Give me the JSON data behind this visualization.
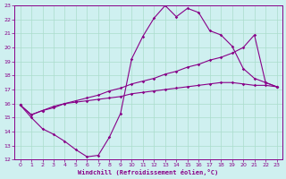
{
  "xlabel": "Windchill (Refroidissement éolien,°C)",
  "background_color": "#cff0f0",
  "line_color": "#880088",
  "grid_color": "#aaddcc",
  "xlim": [
    -0.5,
    23.5
  ],
  "ylim": [
    12,
    23
  ],
  "yticks": [
    12,
    13,
    14,
    15,
    16,
    17,
    18,
    19,
    20,
    21,
    22,
    23
  ],
  "xticks": [
    0,
    1,
    2,
    3,
    4,
    5,
    6,
    7,
    8,
    9,
    10,
    11,
    12,
    13,
    14,
    15,
    16,
    17,
    18,
    19,
    20,
    21,
    22,
    23
  ],
  "series": [
    {
      "x": [
        0,
        1,
        2,
        3,
        4,
        5,
        6,
        7,
        8,
        9,
        10,
        11,
        12,
        13,
        14,
        15,
        16,
        17,
        18,
        19,
        20,
        21,
        22,
        23
      ],
      "y": [
        15.9,
        15.0,
        14.2,
        13.8,
        13.3,
        12.7,
        12.2,
        12.3,
        13.6,
        15.3,
        19.2,
        20.8,
        22.1,
        23.0,
        22.2,
        22.8,
        22.5,
        21.2,
        20.9,
        20.1,
        18.5,
        17.8,
        17.5,
        17.2
      ]
    },
    {
      "x": [
        0,
        1,
        2,
        3,
        4,
        5,
        6,
        7,
        8,
        9,
        10,
        11,
        12,
        13,
        14,
        15,
        16,
        17,
        18,
        19,
        20,
        21,
        22,
        23
      ],
      "y": [
        15.9,
        15.2,
        15.5,
        15.7,
        16.0,
        16.2,
        16.4,
        16.6,
        16.9,
        17.1,
        17.4,
        17.6,
        17.8,
        18.1,
        18.3,
        18.6,
        18.8,
        19.1,
        19.3,
        19.6,
        20.0,
        20.9,
        17.5,
        17.2
      ]
    },
    {
      "x": [
        0,
        1,
        2,
        3,
        4,
        5,
        6,
        7,
        8,
        9,
        10,
        11,
        12,
        13,
        14,
        15,
        16,
        17,
        18,
        19,
        20,
        21,
        22,
        23
      ],
      "y": [
        15.9,
        15.2,
        15.5,
        15.8,
        16.0,
        16.1,
        16.2,
        16.3,
        16.4,
        16.5,
        16.7,
        16.8,
        16.9,
        17.0,
        17.1,
        17.2,
        17.3,
        17.4,
        17.5,
        17.5,
        17.4,
        17.3,
        17.3,
        17.2
      ]
    }
  ]
}
